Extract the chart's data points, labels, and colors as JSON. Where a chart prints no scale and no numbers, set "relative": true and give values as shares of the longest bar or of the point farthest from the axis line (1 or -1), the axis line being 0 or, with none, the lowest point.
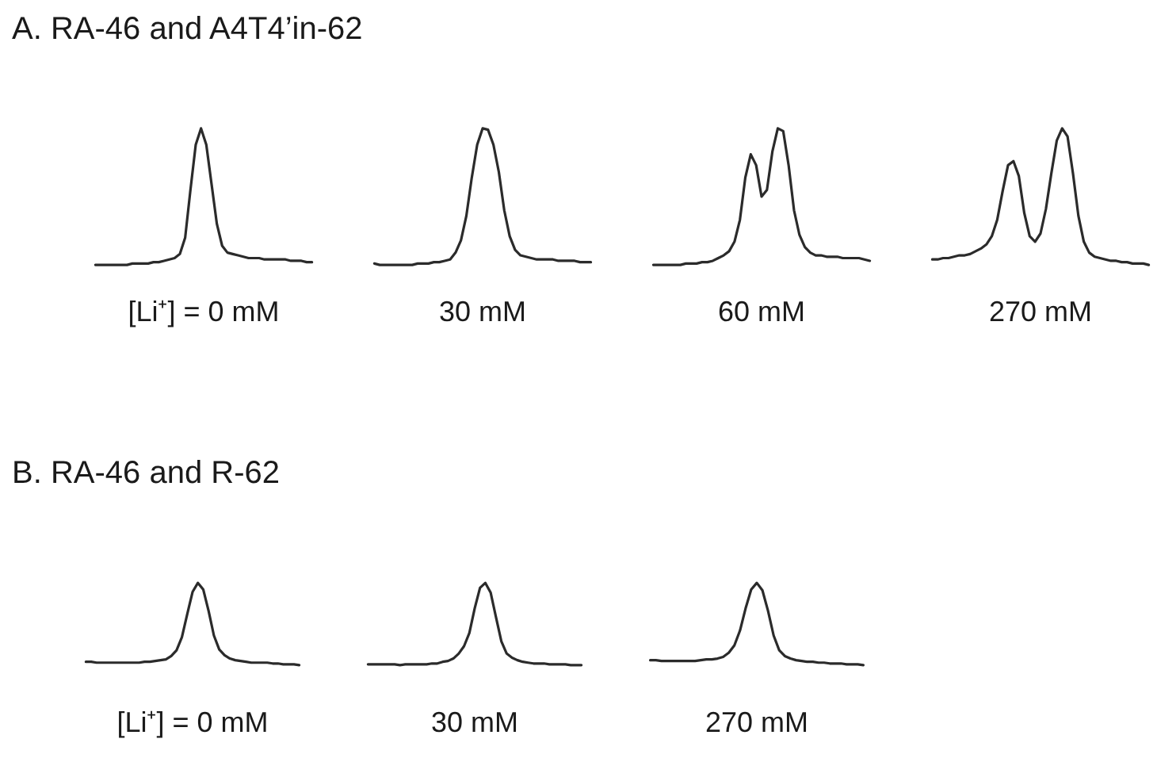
{
  "chart_data": [
    {
      "type": "line",
      "title": "A. RA-46 and A4T4’in-62",
      "xlabel": "[Li⁺] = 0 mM",
      "relative": true,
      "color": "#2b2b2b",
      "categories": [
        null,
        null,
        null,
        null,
        null,
        null,
        null,
        null,
        null,
        null,
        null,
        null,
        null,
        null,
        null,
        null,
        null,
        null,
        null,
        null,
        null,
        null,
        null,
        null,
        null,
        null,
        null,
        null,
        null,
        null,
        null,
        null,
        null,
        null,
        null,
        null,
        null,
        null,
        null,
        null,
        null,
        null
      ],
      "values": [
        0,
        0,
        0,
        0,
        0,
        0,
        0,
        0.01,
        0.01,
        0.01,
        0.01,
        0.02,
        0.02,
        0.03,
        0.04,
        0.05,
        0.08,
        0.2,
        0.55,
        0.88,
        1,
        0.88,
        0.59,
        0.3,
        0.14,
        0.09,
        0.08,
        0.07,
        0.06,
        0.05,
        0.05,
        0.05,
        0.04,
        0.04,
        0.04,
        0.04,
        0.04,
        0.03,
        0.03,
        0.03,
        0.02,
        0.02
      ]
    },
    {
      "type": "line",
      "xlabel": "30 mM",
      "relative": true,
      "color": "#2b2b2b",
      "categories": [
        null,
        null,
        null,
        null,
        null,
        null,
        null,
        null,
        null,
        null,
        null,
        null,
        null,
        null,
        null,
        null,
        null,
        null,
        null,
        null,
        null,
        null,
        null,
        null,
        null,
        null,
        null,
        null,
        null,
        null,
        null,
        null,
        null,
        null,
        null,
        null,
        null,
        null,
        null,
        null,
        null
      ],
      "values": [
        0.01,
        0,
        0,
        0,
        0,
        0,
        0,
        0,
        0.01,
        0.01,
        0.01,
        0.02,
        0.02,
        0.03,
        0.04,
        0.09,
        0.18,
        0.36,
        0.64,
        0.88,
        1,
        0.99,
        0.88,
        0.68,
        0.4,
        0.21,
        0.11,
        0.07,
        0.06,
        0.05,
        0.04,
        0.04,
        0.04,
        0.04,
        0.03,
        0.03,
        0.03,
        0.03,
        0.02,
        0.02,
        0.02
      ]
    },
    {
      "type": "line",
      "xlabel": "60 mM",
      "relative": true,
      "color": "#2b2b2b",
      "categories": [
        null,
        null,
        null,
        null,
        null,
        null,
        null,
        null,
        null,
        null,
        null,
        null,
        null,
        null,
        null,
        null,
        null,
        null,
        null,
        null,
        null,
        null,
        null,
        null,
        null,
        null,
        null,
        null,
        null,
        null,
        null,
        null,
        null,
        null,
        null,
        null,
        null,
        null,
        null,
        null,
        null
      ],
      "values": [
        0,
        0,
        0,
        0,
        0,
        0,
        0.01,
        0.01,
        0.01,
        0.02,
        0.02,
        0.03,
        0.05,
        0.07,
        0.1,
        0.17,
        0.33,
        0.64,
        0.81,
        0.73,
        0.5,
        0.55,
        0.83,
        1,
        0.98,
        0.73,
        0.4,
        0.22,
        0.13,
        0.09,
        0.07,
        0.07,
        0.06,
        0.06,
        0.06,
        0.05,
        0.05,
        0.05,
        0.05,
        0.04,
        0.03
      ]
    },
    {
      "type": "line",
      "xlabel": "270 mM",
      "relative": true,
      "color": "#2b2b2b",
      "categories": [
        null,
        null,
        null,
        null,
        null,
        null,
        null,
        null,
        null,
        null,
        null,
        null,
        null,
        null,
        null,
        null,
        null,
        null,
        null,
        null,
        null,
        null,
        null,
        null,
        null,
        null,
        null,
        null,
        null,
        null,
        null,
        null,
        null,
        null,
        null,
        null,
        null,
        null,
        null,
        null,
        null
      ],
      "values": [
        0.04,
        0.04,
        0.05,
        0.05,
        0.06,
        0.07,
        0.07,
        0.08,
        0.1,
        0.12,
        0.15,
        0.21,
        0.33,
        0.54,
        0.73,
        0.76,
        0.65,
        0.38,
        0.21,
        0.17,
        0.23,
        0.41,
        0.67,
        0.91,
        1,
        0.94,
        0.67,
        0.36,
        0.17,
        0.09,
        0.06,
        0.05,
        0.04,
        0.03,
        0.03,
        0.02,
        0.02,
        0.01,
        0.01,
        0.01,
        0
      ]
    },
    {
      "type": "line",
      "title": "B. RA-46 and R-62",
      "xlabel": "[Li⁺] = 0 mM",
      "relative": true,
      "color": "#2b2b2b",
      "categories": [
        null,
        null,
        null,
        null,
        null,
        null,
        null,
        null,
        null,
        null,
        null,
        null,
        null,
        null,
        null,
        null,
        null,
        null,
        null,
        null,
        null,
        null,
        null,
        null,
        null,
        null,
        null,
        null,
        null,
        null,
        null,
        null,
        null,
        null,
        null,
        null,
        null,
        null,
        null,
        null,
        null
      ],
      "values": [
        0.04,
        0.04,
        0.03,
        0.03,
        0.03,
        0.03,
        0.03,
        0.03,
        0.03,
        0.03,
        0.03,
        0.04,
        0.04,
        0.05,
        0.06,
        0.07,
        0.11,
        0.18,
        0.34,
        0.62,
        0.89,
        1,
        0.92,
        0.66,
        0.36,
        0.19,
        0.12,
        0.08,
        0.06,
        0.05,
        0.04,
        0.03,
        0.03,
        0.03,
        0.03,
        0.02,
        0.02,
        0.01,
        0.01,
        0.01,
        0
      ]
    },
    {
      "type": "line",
      "xlabel": "30 mM",
      "relative": true,
      "color": "#2b2b2b",
      "categories": [
        null,
        null,
        null,
        null,
        null,
        null,
        null,
        null,
        null,
        null,
        null,
        null,
        null,
        null,
        null,
        null,
        null,
        null,
        null,
        null,
        null,
        null,
        null,
        null,
        null,
        null,
        null,
        null,
        null,
        null,
        null,
        null,
        null,
        null,
        null,
        null,
        null,
        null,
        null,
        null,
        null
      ],
      "values": [
        0.01,
        0.01,
        0.01,
        0.01,
        0.01,
        0.01,
        0,
        0.01,
        0.01,
        0.01,
        0.01,
        0.01,
        0.02,
        0.02,
        0.04,
        0.05,
        0.08,
        0.14,
        0.23,
        0.39,
        0.69,
        0.94,
        1,
        0.88,
        0.58,
        0.29,
        0.14,
        0.09,
        0.06,
        0.04,
        0.03,
        0.02,
        0.02,
        0.02,
        0.01,
        0.01,
        0.01,
        0.01,
        0,
        0,
        0
      ]
    },
    {
      "type": "line",
      "xlabel": "270 mM",
      "relative": true,
      "color": "#2b2b2b",
      "categories": [
        null,
        null,
        null,
        null,
        null,
        null,
        null,
        null,
        null,
        null,
        null,
        null,
        null,
        null,
        null,
        null,
        null,
        null,
        null,
        null,
        null,
        null,
        null,
        null,
        null,
        null,
        null,
        null,
        null,
        null,
        null,
        null,
        null,
        null,
        null,
        null,
        null,
        null,
        null
      ],
      "values": [
        0.06,
        0.06,
        0.05,
        0.05,
        0.05,
        0.05,
        0.05,
        0.05,
        0.05,
        0.06,
        0.07,
        0.07,
        0.08,
        0.1,
        0.15,
        0.24,
        0.42,
        0.69,
        0.92,
        1,
        0.91,
        0.66,
        0.36,
        0.18,
        0.11,
        0.08,
        0.06,
        0.05,
        0.04,
        0.04,
        0.03,
        0.03,
        0.02,
        0.02,
        0.02,
        0.01,
        0.01,
        0.01,
        0
      ]
    }
  ]
}
